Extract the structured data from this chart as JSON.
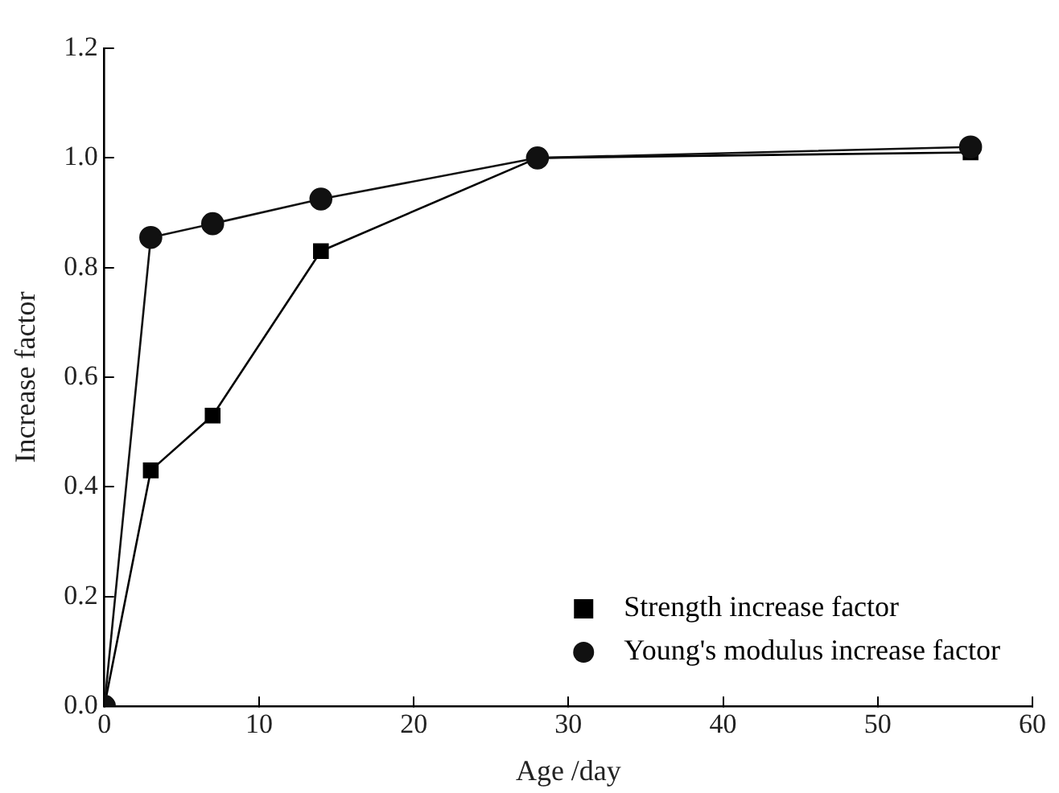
{
  "chart_data": {
    "type": "line",
    "xlabel": "Age /day",
    "ylabel": "Increase factor",
    "xlim": [
      0,
      60
    ],
    "xticks": [
      0,
      10,
      20,
      30,
      40,
      50,
      60
    ],
    "ylim": [
      0,
      1.2
    ],
    "yticks": [
      {
        "value": 0,
        "label": "0.0"
      },
      {
        "value": 0.2,
        "label": "0.2"
      },
      {
        "value": 0.4,
        "label": "0.4"
      },
      {
        "value": 0.6,
        "label": "0.6"
      },
      {
        "value": 0.8,
        "label": "0.8"
      },
      {
        "value": 1,
        "label": "1.0"
      },
      {
        "value": 1.2,
        "label": "1.2"
      }
    ],
    "grid": false,
    "legend": "bottom right",
    "line_style": "solid",
    "series": [
      {
        "name": "Strength increase factor",
        "color": "#000000",
        "marker": "square",
        "x": [
          0,
          3,
          7,
          14,
          28,
          56
        ],
        "values": [
          0,
          0.43,
          0.53,
          0.83,
          1.0,
          1.01
        ]
      },
      {
        "name": "Young's modulus increase factor",
        "color": "#111111",
        "marker": "circle",
        "x": [
          0,
          3,
          7,
          14,
          28,
          56
        ],
        "values": [
          0,
          0.855,
          0.88,
          0.925,
          1.0,
          1.02
        ]
      }
    ]
  }
}
